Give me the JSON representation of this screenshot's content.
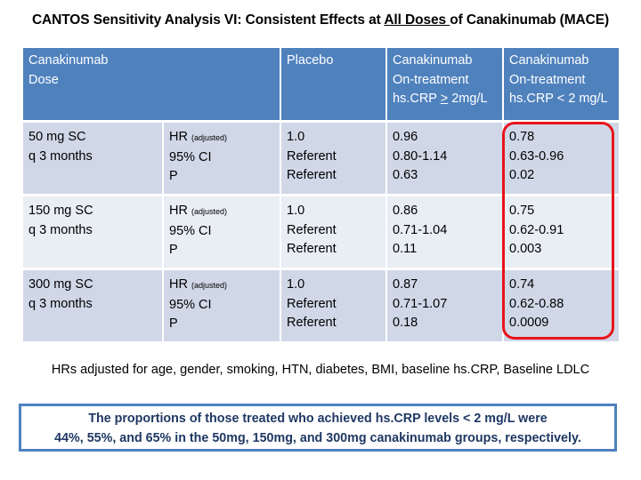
{
  "title": {
    "prefix": "CANTOS Sensitivity Analysis VI: Consistent Effects at ",
    "underlined": "All Doses ",
    "suffix": "of Canakinumab (MACE)"
  },
  "table": {
    "headers": {
      "dose_line1": "Canakinumab",
      "dose_line2": "Dose",
      "placebo": "Placebo",
      "ge2_line1": "Canakinumab",
      "ge2_line2": "On-treatment",
      "ge2_line3_prefix": "hs.CRP ",
      "ge2_line3_symbol": ">",
      "ge2_line3_suffix": " 2mg/L",
      "lt2_line1": "Canakinumab",
      "lt2_line2": "On-treatment",
      "lt2_line3": "hs.CRP < 2 mg/L"
    },
    "stat_labels": {
      "hr": "HR",
      "hr_note": "(adjusted)",
      "ci": "95% CI",
      "p": "P"
    },
    "rows": [
      {
        "dose_line1": "50 mg SC",
        "dose_line2": "q 3 months",
        "placebo": [
          "1.0",
          "Referent",
          "Referent"
        ],
        "ge2": [
          "0.96",
          "0.80-1.14",
          "0.63"
        ],
        "lt2": [
          "0.78",
          "0.63-0.96",
          "0.02"
        ]
      },
      {
        "dose_line1": "150 mg SC",
        "dose_line2": "q 3 months",
        "placebo": [
          "1.0",
          "Referent",
          "Referent"
        ],
        "ge2": [
          "0.86",
          "0.71-1.04",
          "0.11"
        ],
        "lt2": [
          "0.75",
          "0.62-0.91",
          "0.003"
        ]
      },
      {
        "dose_line1": "300 mg SC",
        "dose_line2": "q 3 months",
        "placebo": [
          "1.0",
          "Referent",
          "Referent"
        ],
        "ge2": [
          "0.87",
          "0.71-1.07",
          "0.18"
        ],
        "lt2": [
          "0.74",
          "0.62-0.88",
          "0.0009"
        ]
      }
    ]
  },
  "footnote": "HRs adjusted for age, gender, smoking, HTN, diabetes, BMI, baseline hs.CRP, Baseline LDLC",
  "callout": {
    "line1": "The proportions of those treated who achieved hs.CRP levels < 2 mg/L were",
    "line2": "44%, 55%, and 65% in the 50mg, 150mg, and 300mg canakinumab groups, respectively."
  },
  "colors": {
    "header_bg": "#4f81bd",
    "row_dark": "#d0d8e8",
    "row_light": "#e9edf4",
    "highlight": "#e8131b",
    "callout_text": "#1f3864"
  }
}
